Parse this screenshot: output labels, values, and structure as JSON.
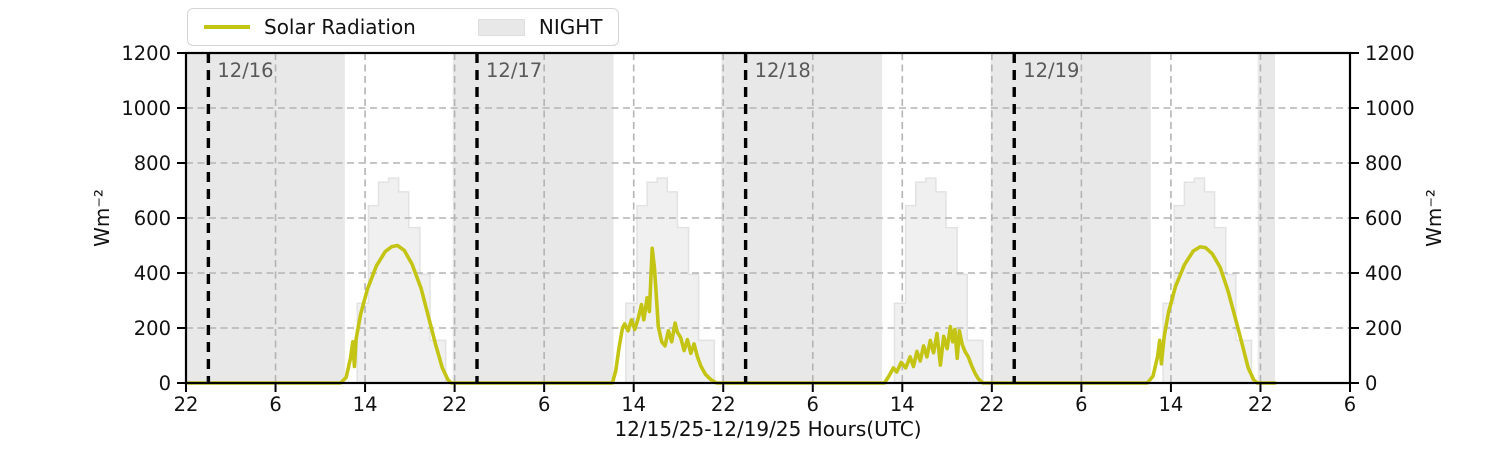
{
  "figure": {
    "xlabel": "12/15/25-12/19/25  Hours(UTC)",
    "ylabel_left": "Wm⁻²",
    "ylabel_right": "Wm⁻²"
  },
  "legend": {
    "items": [
      {
        "label": "Solar Radiation",
        "type": "line",
        "color": "#c3c414"
      },
      {
        "label": "NIGHT",
        "type": "patch",
        "color": "#e8e8e8"
      }
    ]
  },
  "colors": {
    "solar_line": "#c3c414",
    "night_fill": "#e8e8e8",
    "step_fill": "#f0f0f0",
    "step_edge": "#e2e2e2",
    "grid": "#b4b4b4",
    "day_boundary_line": "#000000",
    "date_label": "#595959",
    "spine": "#000000",
    "tick_label": "#111111"
  },
  "chart_data": {
    "type": "line",
    "title": "",
    "xlabel": "12/15/25-12/19/25  Hours(UTC)",
    "ylabel": "Wm⁻²",
    "ylim": [
      0,
      1200
    ],
    "yticks": [
      0,
      200,
      400,
      600,
      800,
      1000,
      1200
    ],
    "grid": true,
    "legend_position": "top-left-outside",
    "x_axis": {
      "description": "hours UTC, plot spans 104 h from 22:00 12/15/25 to 06:00 12/20/25",
      "hours_total": 104,
      "tick_interval_hours": 8,
      "tick_labels": [
        "22",
        "6",
        "14",
        "22",
        "6",
        "14",
        "22",
        "6",
        "14",
        "22",
        "6",
        "14",
        "22",
        "6"
      ]
    },
    "day_boundaries": [
      {
        "offset_hours": 2,
        "label": "12/16"
      },
      {
        "offset_hours": 26,
        "label": "12/17"
      },
      {
        "offset_hours": 50,
        "label": "12/18"
      },
      {
        "offset_hours": 74,
        "label": "12/19"
      }
    ],
    "night_bands_hours": [
      [
        0,
        14.2
      ],
      [
        23.83,
        38.2
      ],
      [
        47.83,
        62.2
      ],
      [
        71.9,
        86.2
      ],
      [
        95.75,
        97.3
      ]
    ],
    "step_series": {
      "name": "clear-sky step envelope (unlabeled gray steps)",
      "day_start_offsets_hours": [
        0,
        24,
        48,
        72
      ],
      "edges_hours": [
        15.3,
        16.3,
        17.2,
        18.1,
        19.0,
        19.9,
        20.9,
        21.8,
        23.2
      ],
      "values": [
        290,
        645,
        730,
        745,
        695,
        565,
        395,
        155
      ]
    },
    "series": [
      {
        "name": "Solar Radiation",
        "units": "Wm⁻²",
        "points": [
          [
            0,
            0
          ],
          [
            13.8,
            0
          ],
          [
            14.3,
            20
          ],
          [
            14.7,
            90
          ],
          [
            14.9,
            150
          ],
          [
            15.05,
            60
          ],
          [
            15.2,
            160
          ],
          [
            15.6,
            250
          ],
          [
            16.2,
            340
          ],
          [
            17.0,
            425
          ],
          [
            17.8,
            478
          ],
          [
            18.4,
            496
          ],
          [
            18.9,
            500
          ],
          [
            19.5,
            482
          ],
          [
            20.2,
            432
          ],
          [
            21.0,
            345
          ],
          [
            21.7,
            235
          ],
          [
            22.3,
            140
          ],
          [
            22.9,
            55
          ],
          [
            23.4,
            12
          ],
          [
            23.7,
            0
          ],
          [
            38.1,
            0
          ],
          [
            38.4,
            45
          ],
          [
            38.7,
            130
          ],
          [
            39.0,
            200
          ],
          [
            39.2,
            215
          ],
          [
            39.5,
            190
          ],
          [
            39.8,
            230
          ],
          [
            40.1,
            195
          ],
          [
            40.4,
            235
          ],
          [
            40.7,
            285
          ],
          [
            40.9,
            230
          ],
          [
            41.2,
            310
          ],
          [
            41.4,
            260
          ],
          [
            41.65,
            490
          ],
          [
            41.85,
            420
          ],
          [
            42.0,
            330
          ],
          [
            42.2,
            205
          ],
          [
            42.5,
            150
          ],
          [
            42.8,
            135
          ],
          [
            43.1,
            190
          ],
          [
            43.4,
            150
          ],
          [
            43.7,
            218
          ],
          [
            43.9,
            185
          ],
          [
            44.2,
            165
          ],
          [
            44.5,
            118
          ],
          [
            44.8,
            158
          ],
          [
            45.1,
            108
          ],
          [
            45.4,
            142
          ],
          [
            45.7,
            95
          ],
          [
            46.0,
            62
          ],
          [
            46.4,
            32
          ],
          [
            46.9,
            12
          ],
          [
            47.4,
            0
          ],
          [
            62.4,
            0
          ],
          [
            62.8,
            25
          ],
          [
            63.2,
            55
          ],
          [
            63.5,
            40
          ],
          [
            63.9,
            75
          ],
          [
            64.3,
            55
          ],
          [
            64.7,
            95
          ],
          [
            65.0,
            60
          ],
          [
            65.3,
            115
          ],
          [
            65.6,
            80
          ],
          [
            65.9,
            135
          ],
          [
            66.2,
            95
          ],
          [
            66.5,
            155
          ],
          [
            66.8,
            110
          ],
          [
            67.1,
            180
          ],
          [
            67.4,
            65
          ],
          [
            67.7,
            170
          ],
          [
            68.0,
            125
          ],
          [
            68.3,
            205
          ],
          [
            68.5,
            150
          ],
          [
            68.7,
            195
          ],
          [
            68.9,
            90
          ],
          [
            69.1,
            190
          ],
          [
            69.35,
            140
          ],
          [
            69.6,
            115
          ],
          [
            69.9,
            95
          ],
          [
            70.2,
            62
          ],
          [
            70.5,
            35
          ],
          [
            70.8,
            15
          ],
          [
            71.2,
            0
          ],
          [
            85.9,
            0
          ],
          [
            86.4,
            25
          ],
          [
            86.8,
            95
          ],
          [
            87.0,
            155
          ],
          [
            87.15,
            70
          ],
          [
            87.4,
            170
          ],
          [
            87.8,
            260
          ],
          [
            88.4,
            350
          ],
          [
            89.2,
            430
          ],
          [
            90.0,
            480
          ],
          [
            90.6,
            495
          ],
          [
            91.1,
            492
          ],
          [
            91.7,
            470
          ],
          [
            92.4,
            420
          ],
          [
            93.1,
            335
          ],
          [
            93.8,
            230
          ],
          [
            94.4,
            135
          ],
          [
            94.9,
            55
          ],
          [
            95.4,
            12
          ],
          [
            95.7,
            0
          ],
          [
            97.3,
            0
          ]
        ]
      }
    ]
  }
}
